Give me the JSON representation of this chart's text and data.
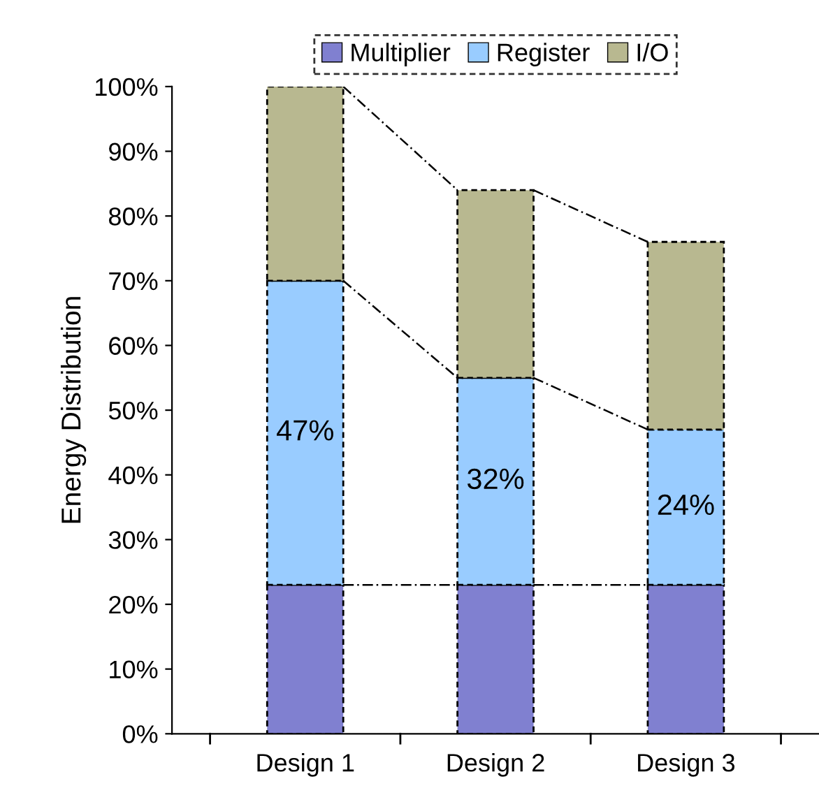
{
  "chart_data": {
    "type": "bar",
    "stacked": true,
    "ylabel": "Energy Distribution",
    "categories": [
      "Design 1",
      "Design 2",
      "Design 3"
    ],
    "series": [
      {
        "name": "Multiplier",
        "color": "#8080d0",
        "values": [
          23,
          23,
          23
        ]
      },
      {
        "name": "Register",
        "color": "#99ccff",
        "values": [
          47,
          32,
          24
        ],
        "value_labels": [
          "47%",
          "32%",
          "24%"
        ]
      },
      {
        "name": "I/O",
        "color": "#b8b890",
        "values": [
          30,
          29,
          29
        ]
      }
    ],
    "ylim": [
      0,
      100
    ],
    "yticks": [
      {
        "value": 0,
        "label": "0%"
      },
      {
        "value": 10,
        "label": "10%"
      },
      {
        "value": 20,
        "label": "20%"
      },
      {
        "value": 30,
        "label": "30%"
      },
      {
        "value": 40,
        "label": "40%"
      },
      {
        "value": 50,
        "label": "50%"
      },
      {
        "value": 60,
        "label": "60%"
      },
      {
        "value": 70,
        "label": "70%"
      },
      {
        "value": 80,
        "label": "80%"
      },
      {
        "value": 90,
        "label": "90%"
      },
      {
        "value": 100,
        "label": "100%"
      }
    ],
    "grid": false,
    "legend": "top"
  }
}
